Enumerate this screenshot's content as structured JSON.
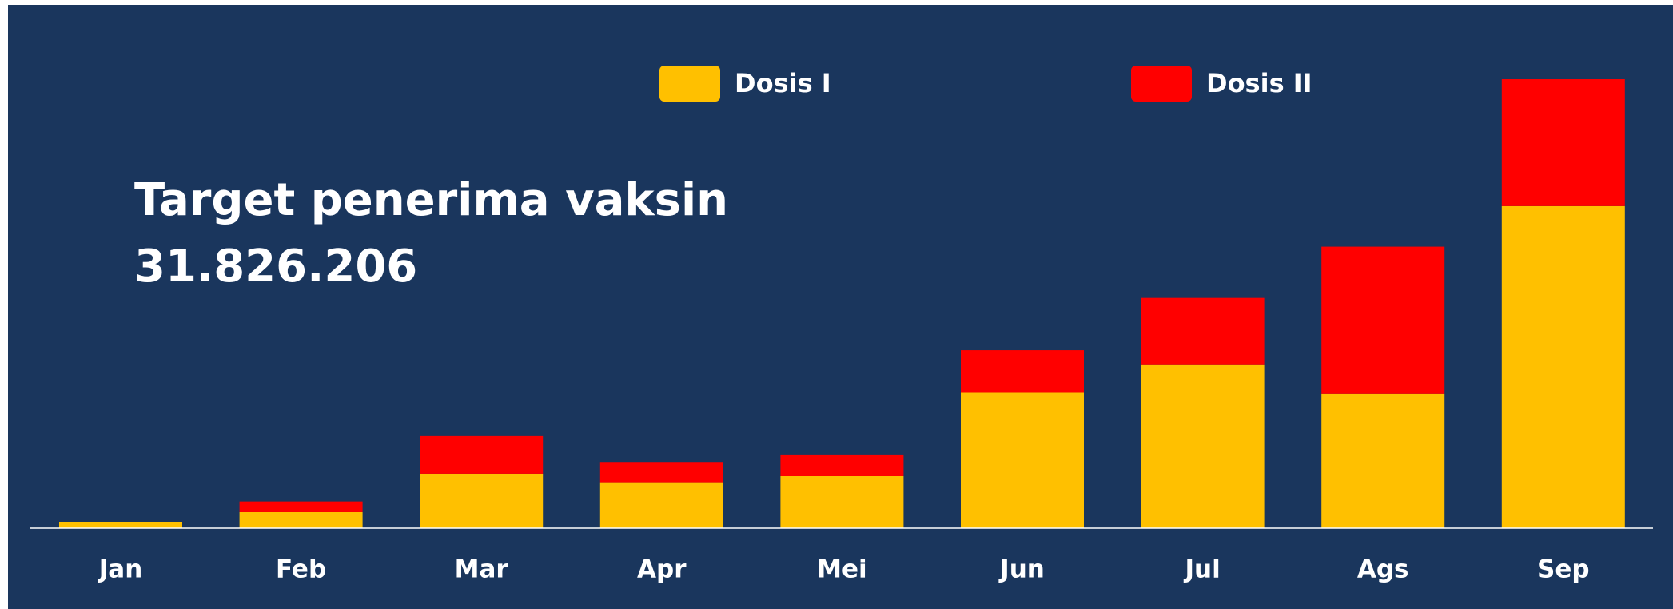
{
  "chart_data": {
    "type": "stacked_bar",
    "title": "Target penerima vaksin",
    "subtitle": "31.826.206",
    "categories": [
      "Jan",
      "Feb",
      "Mar",
      "Apr",
      "Mei",
      "Jun",
      "Jul",
      "Ags",
      "Sep"
    ],
    "series": [
      {
        "name": "Dosis I",
        "color": "#ffc000",
        "values": [
          6,
          15,
          51,
          43,
          49,
          127,
          153,
          126,
          302
        ]
      },
      {
        "name": "Dosis II",
        "color": "#ff0000",
        "values": [
          0,
          10,
          36,
          19,
          20,
          40,
          63,
          138,
          119
        ]
      }
    ],
    "ylim": [
      0,
      430
    ],
    "legend": "top"
  }
}
